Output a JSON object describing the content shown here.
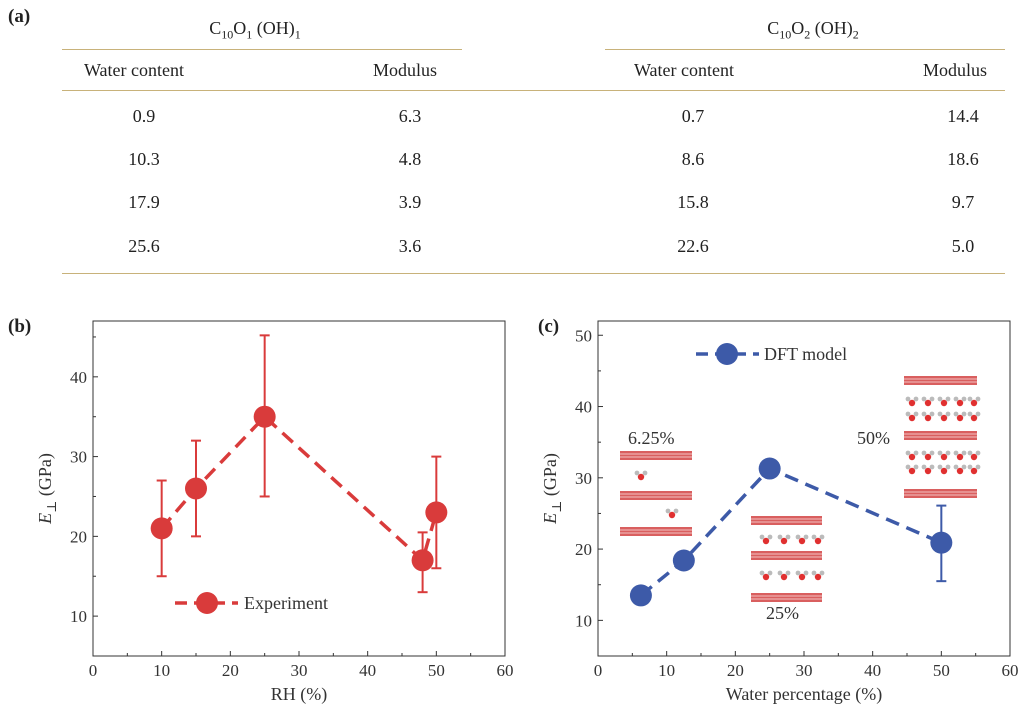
{
  "table": {
    "label": "(a)",
    "left": {
      "title_main": "C",
      "title_parts": [
        [
          "C",
          "10"
        ],
        [
          "O",
          "1"
        ],
        [
          " (OH)",
          "1"
        ]
      ],
      "col1": "Water content",
      "col2": "Modulus",
      "rows": [
        [
          "0.9",
          "6.3"
        ],
        [
          "10.3",
          "4.8"
        ],
        [
          "17.9",
          "3.9"
        ],
        [
          "25.6",
          "3.6"
        ]
      ]
    },
    "right": {
      "title_parts": [
        [
          "C",
          "10"
        ],
        [
          "O",
          "2"
        ],
        [
          " (OH)",
          "2"
        ]
      ],
      "col1": "Water content",
      "col2": "Modulus",
      "rows": [
        [
          "0.7",
          "14.4"
        ],
        [
          "8.6",
          "18.6"
        ],
        [
          "15.8",
          "9.7"
        ],
        [
          "22.6",
          "5.0"
        ]
      ]
    }
  },
  "chart_data": [
    {
      "type": "line",
      "panel_label": "(b)",
      "xlabel": "RH (%)",
      "ylabel_main": "E",
      "ylabel_sub": "⊥",
      "ylabel_unit": " (GPa)",
      "xlim": [
        0,
        60
      ],
      "ylim": [
        5,
        47
      ],
      "xticks": [
        0,
        10,
        20,
        30,
        40,
        50,
        60
      ],
      "yticks": [
        10,
        20,
        30,
        40
      ],
      "color": "#d93b3b",
      "series": [
        {
          "name": "Experiment",
          "x": [
            10,
            15,
            25,
            48,
            50
          ],
          "y": [
            21,
            26,
            35,
            17,
            23
          ],
          "err_low": [
            15,
            20,
            25,
            13,
            16
          ],
          "err_high": [
            27,
            32,
            45.2,
            20.5,
            30
          ]
        }
      ],
      "legend_position": "bottom-left"
    },
    {
      "type": "line",
      "panel_label": "(c)",
      "xlabel": "Water percentage (%)",
      "ylabel_main": "E",
      "ylabel_sub": "⊥",
      "ylabel_unit": " (GPa)",
      "xlim": [
        0,
        60
      ],
      "ylim": [
        5,
        52
      ],
      "xticks": [
        0,
        10,
        20,
        30,
        40,
        50,
        60
      ],
      "yticks": [
        10,
        20,
        30,
        40,
        50
      ],
      "color": "#3d5aa8",
      "series": [
        {
          "name": "DFT model",
          "x": [
            6.25,
            12.5,
            25,
            50
          ],
          "y": [
            13.5,
            18.4,
            31.3,
            20.9
          ],
          "err_low": [
            null,
            null,
            null,
            15.5
          ],
          "err_high": [
            null,
            null,
            null,
            26.1
          ]
        }
      ],
      "annotations": [
        "6.25%",
        "25%",
        "50%"
      ],
      "legend_position": "top-left"
    }
  ]
}
